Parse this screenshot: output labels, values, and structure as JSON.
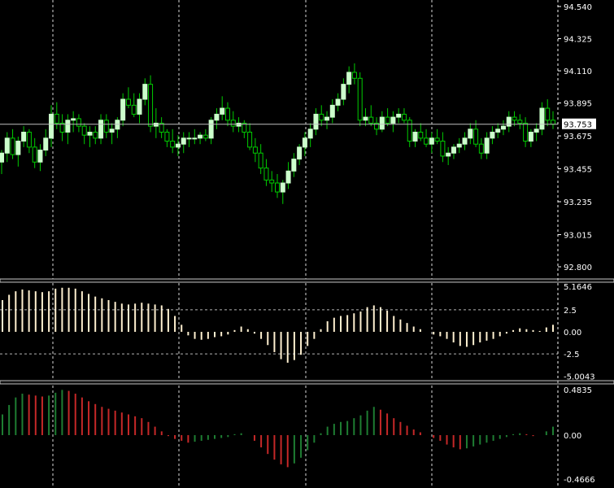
{
  "theme": {
    "background": "#000000",
    "grid_color": "#ffffff",
    "axis_text_color": "#ffffff",
    "bull_body": "#ccffcc",
    "bear_body": "#000000",
    "wick_color": "#00cc00",
    "osc1_color": "#fff0d0",
    "osc2_up_color": "#1e7d32",
    "osc2_down_color": "#c62828",
    "separator_color": "#c0c0c0",
    "current_price_line": "#c0c0c0",
    "current_price_box_fill": "#ffffff"
  },
  "chart_data": [
    {
      "type": "candlestick",
      "pane": "price",
      "yticks": [
        "94.540",
        "94.325",
        "94.110",
        "93.895",
        "93.675",
        "93.455",
        "93.235",
        "93.015",
        "92.800"
      ],
      "ylim": [
        92.8,
        94.54
      ],
      "current_price": "93.753",
      "ohlc": [
        [
          93.5,
          93.58,
          93.42,
          93.56
        ],
        [
          93.56,
          93.7,
          93.5,
          93.66
        ],
        [
          93.66,
          93.72,
          93.52,
          93.55
        ],
        [
          93.55,
          93.67,
          93.47,
          93.64
        ],
        [
          93.64,
          93.74,
          93.6,
          93.7
        ],
        [
          93.7,
          93.72,
          93.56,
          93.6
        ],
        [
          93.6,
          93.66,
          93.46,
          93.5
        ],
        [
          93.5,
          93.62,
          93.44,
          93.58
        ],
        [
          93.58,
          93.72,
          93.54,
          93.66
        ],
        [
          93.66,
          93.88,
          93.6,
          93.82
        ],
        [
          93.82,
          93.9,
          93.72,
          93.76
        ],
        [
          93.76,
          93.82,
          93.64,
          93.7
        ],
        [
          93.7,
          93.82,
          93.62,
          93.78
        ],
        [
          93.78,
          93.84,
          93.7,
          93.79
        ],
        [
          93.79,
          93.82,
          93.7,
          93.74
        ],
        [
          93.74,
          93.76,
          93.62,
          93.68
        ],
        [
          93.68,
          93.74,
          93.6,
          93.7
        ],
        [
          93.7,
          93.74,
          93.62,
          93.66
        ],
        [
          93.66,
          93.82,
          93.62,
          93.78
        ],
        [
          93.78,
          93.82,
          93.66,
          93.7
        ],
        [
          93.7,
          93.76,
          93.62,
          93.72
        ],
        [
          93.72,
          93.8,
          93.66,
          93.78
        ],
        [
          93.78,
          93.96,
          93.74,
          93.92
        ],
        [
          93.92,
          94.0,
          93.86,
          93.88
        ],
        [
          93.88,
          93.96,
          93.8,
          93.82
        ],
        [
          93.82,
          93.96,
          93.76,
          93.92
        ],
        [
          93.92,
          94.06,
          93.88,
          94.02
        ],
        [
          94.02,
          94.08,
          93.7,
          93.74
        ],
        [
          93.74,
          93.86,
          93.66,
          93.76
        ],
        [
          93.76,
          93.8,
          93.66,
          93.7
        ],
        [
          93.7,
          93.72,
          93.6,
          93.64
        ],
        [
          93.64,
          93.72,
          93.56,
          93.6
        ],
        [
          93.6,
          93.68,
          93.54,
          93.62
        ],
        [
          93.62,
          93.7,
          93.56,
          93.66
        ],
        [
          93.66,
          93.7,
          93.6,
          93.66
        ],
        [
          93.66,
          93.72,
          93.62,
          93.66
        ],
        [
          93.66,
          93.7,
          93.62,
          93.68
        ],
        [
          93.68,
          93.72,
          93.64,
          93.66
        ],
        [
          93.66,
          93.8,
          93.62,
          93.78
        ],
        [
          93.78,
          93.86,
          93.72,
          93.82
        ],
        [
          93.82,
          93.94,
          93.78,
          93.86
        ],
        [
          93.86,
          93.9,
          93.74,
          93.78
        ],
        [
          93.78,
          93.84,
          93.7,
          93.74
        ],
        [
          93.74,
          93.8,
          93.7,
          93.76
        ],
        [
          93.76,
          93.78,
          93.66,
          93.7
        ],
        [
          93.7,
          93.76,
          93.58,
          93.6
        ],
        [
          93.6,
          93.66,
          93.5,
          93.56
        ],
        [
          93.56,
          93.62,
          93.42,
          93.46
        ],
        [
          93.46,
          93.52,
          93.34,
          93.38
        ],
        [
          93.38,
          93.44,
          93.3,
          93.36
        ],
        [
          93.36,
          93.42,
          93.26,
          93.3
        ],
        [
          93.3,
          93.38,
          93.22,
          93.36
        ],
        [
          93.36,
          93.5,
          93.32,
          93.44
        ],
        [
          93.44,
          93.56,
          93.4,
          93.52
        ],
        [
          93.52,
          93.62,
          93.48,
          93.6
        ],
        [
          93.6,
          93.7,
          93.54,
          93.66
        ],
        [
          93.66,
          93.76,
          93.6,
          93.72
        ],
        [
          93.72,
          93.86,
          93.68,
          93.82
        ],
        [
          93.82,
          93.88,
          93.74,
          93.78
        ],
        [
          93.78,
          93.84,
          93.72,
          93.8
        ],
        [
          93.8,
          93.92,
          93.76,
          93.88
        ],
        [
          93.88,
          93.96,
          93.84,
          93.92
        ],
        [
          93.92,
          94.06,
          93.88,
          94.02
        ],
        [
          94.02,
          94.14,
          93.96,
          94.1
        ],
        [
          94.1,
          94.16,
          94.02,
          94.06
        ],
        [
          94.06,
          94.1,
          93.74,
          93.78
        ],
        [
          93.78,
          93.86,
          93.74,
          93.8
        ],
        [
          93.8,
          93.88,
          93.74,
          93.76
        ],
        [
          93.76,
          93.8,
          93.68,
          93.72
        ],
        [
          93.72,
          93.84,
          93.7,
          93.8
        ],
        [
          93.8,
          93.86,
          93.74,
          93.76
        ],
        [
          93.76,
          93.84,
          93.7,
          93.8
        ],
        [
          93.8,
          93.86,
          93.76,
          93.82
        ],
        [
          93.82,
          93.86,
          93.76,
          93.78
        ],
        [
          93.78,
          93.8,
          93.6,
          93.64
        ],
        [
          93.64,
          93.72,
          93.6,
          93.7
        ],
        [
          93.7,
          93.76,
          93.64,
          93.66
        ],
        [
          93.66,
          93.72,
          93.6,
          93.62
        ],
        [
          93.62,
          93.7,
          93.56,
          93.66
        ],
        [
          93.66,
          93.72,
          93.62,
          93.64
        ],
        [
          93.64,
          93.7,
          93.5,
          93.54
        ],
        [
          93.54,
          93.6,
          93.48,
          93.56
        ],
        [
          93.56,
          93.62,
          93.52,
          93.6
        ],
        [
          93.6,
          93.66,
          93.56,
          93.62
        ],
        [
          93.62,
          93.7,
          93.58,
          93.66
        ],
        [
          93.66,
          93.76,
          93.62,
          93.72
        ],
        [
          93.72,
          93.78,
          93.6,
          93.62
        ],
        [
          93.62,
          93.66,
          93.52,
          93.56
        ],
        [
          93.56,
          93.7,
          93.52,
          93.66
        ],
        [
          93.66,
          93.74,
          93.62,
          93.7
        ],
        [
          93.7,
          93.76,
          93.66,
          93.72
        ],
        [
          93.72,
          93.78,
          93.68,
          93.74
        ],
        [
          93.74,
          93.84,
          93.7,
          93.8
        ],
        [
          93.8,
          93.84,
          93.74,
          93.78
        ],
        [
          93.78,
          93.82,
          93.72,
          93.76
        ],
        [
          93.76,
          93.8,
          93.6,
          93.64
        ],
        [
          93.64,
          93.72,
          93.6,
          93.7
        ],
        [
          93.7,
          93.76,
          93.64,
          93.72
        ],
        [
          93.72,
          93.9,
          93.68,
          93.86
        ],
        [
          93.86,
          93.92,
          93.74,
          93.78
        ],
        [
          93.78,
          93.84,
          93.72,
          93.753
        ]
      ]
    },
    {
      "type": "histogram",
      "pane": "oscillator-1",
      "yticks": [
        "5.1646",
        "2.5",
        "0.00",
        "-2.5",
        "-5.0043"
      ],
      "ylim": [
        -5.0043,
        5.1646
      ],
      "values": [
        3.6,
        4.2,
        4.6,
        4.8,
        4.7,
        4.6,
        4.5,
        4.6,
        4.9,
        5.0,
        5.0,
        4.9,
        4.6,
        4.3,
        4.0,
        3.8,
        3.6,
        3.4,
        3.2,
        3.1,
        3.2,
        3.3,
        3.2,
        3.1,
        3.0,
        2.6,
        1.8,
        0.8,
        -0.4,
        -0.8,
        -0.9,
        -0.8,
        -0.6,
        -0.5,
        -0.3,
        0.2,
        0.6,
        0.3,
        -0.2,
        -0.8,
        -1.5,
        -2.3,
        -3.1,
        -3.5,
        -3.2,
        -2.6,
        -1.6,
        -0.8,
        0.3,
        1.2,
        1.6,
        1.8,
        1.9,
        2.1,
        2.3,
        2.8,
        3.0,
        2.8,
        2.4,
        1.8,
        1.4,
        1.0,
        0.6,
        0.3,
        0.0,
        -0.3,
        -0.5,
        -0.8,
        -1.2,
        -1.6,
        -1.7,
        -1.5,
        -1.2,
        -1.0,
        -0.8,
        -0.5,
        -0.2,
        0.2,
        0.4,
        0.3,
        0.2,
        0.1,
        0.5,
        0.8
      ]
    },
    {
      "type": "histogram",
      "pane": "oscillator-2",
      "yticks": [
        "0.4835",
        "0.00",
        "-0.4666"
      ],
      "ylim": [
        -0.4666,
        0.4835
      ],
      "values": [
        0.22,
        0.32,
        0.4,
        0.44,
        0.43,
        0.42,
        0.41,
        0.42,
        0.45,
        0.48,
        0.47,
        0.44,
        0.4,
        0.36,
        0.33,
        0.3,
        0.28,
        0.26,
        0.24,
        0.22,
        0.2,
        0.18,
        0.14,
        0.09,
        0.04,
        -0.01,
        -0.04,
        -0.06,
        -0.08,
        -0.07,
        -0.06,
        -0.05,
        -0.04,
        -0.03,
        -0.02,
        0.01,
        0.02,
        0.0,
        -0.06,
        -0.13,
        -0.2,
        -0.26,
        -0.31,
        -0.34,
        -0.3,
        -0.24,
        -0.16,
        -0.08,
        0.02,
        0.09,
        0.12,
        0.14,
        0.15,
        0.18,
        0.21,
        0.26,
        0.3,
        0.27,
        0.23,
        0.18,
        0.14,
        0.1,
        0.06,
        0.03,
        0.0,
        -0.03,
        -0.06,
        -0.1,
        -0.13,
        -0.15,
        -0.14,
        -0.12,
        -0.1,
        -0.08,
        -0.06,
        -0.04,
        -0.02,
        0.01,
        0.02,
        0.01,
        -0.01,
        0.0,
        0.04,
        0.09
      ]
    }
  ]
}
